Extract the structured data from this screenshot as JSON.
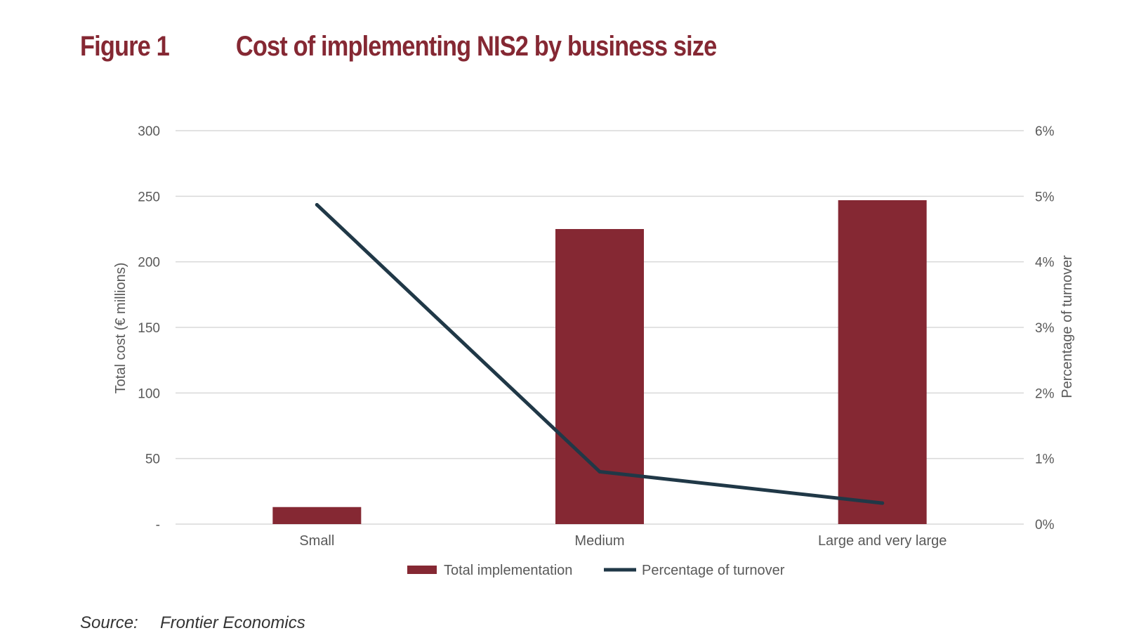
{
  "figure": {
    "label": "Figure 1",
    "title": "Cost of implementing NIS2 by business size"
  },
  "source": {
    "label": "Source:",
    "text": "Frontier Economics"
  },
  "colors": {
    "brand": "#852833",
    "bar": "#852833",
    "line": "#203847",
    "grid": "#d9d9d9",
    "axis_text": "#595959"
  },
  "chart_data": {
    "type": "bar",
    "categories": [
      "Small",
      "Medium",
      "Large and very large"
    ],
    "series": [
      {
        "name": "Total implementation",
        "type": "bar",
        "axis": "left",
        "values": [
          13,
          225,
          247
        ]
      },
      {
        "name": "Percentage of turnover",
        "type": "line",
        "axis": "right",
        "values": [
          4.87,
          0.8,
          0.32
        ]
      }
    ],
    "ylabel": "Total cost (€ millions)",
    "ylabel_right": "Percentage of turnover",
    "ylim": [
      0,
      300
    ],
    "ylim_right": [
      0,
      6
    ],
    "y_ticks": [
      "-",
      "50",
      "100",
      "150",
      "200",
      "250",
      "300"
    ],
    "y_ticks_right": [
      "0%",
      "1%",
      "2%",
      "3%",
      "4%",
      "5%",
      "6%"
    ],
    "grid": true,
    "legend_position": "bottom"
  }
}
